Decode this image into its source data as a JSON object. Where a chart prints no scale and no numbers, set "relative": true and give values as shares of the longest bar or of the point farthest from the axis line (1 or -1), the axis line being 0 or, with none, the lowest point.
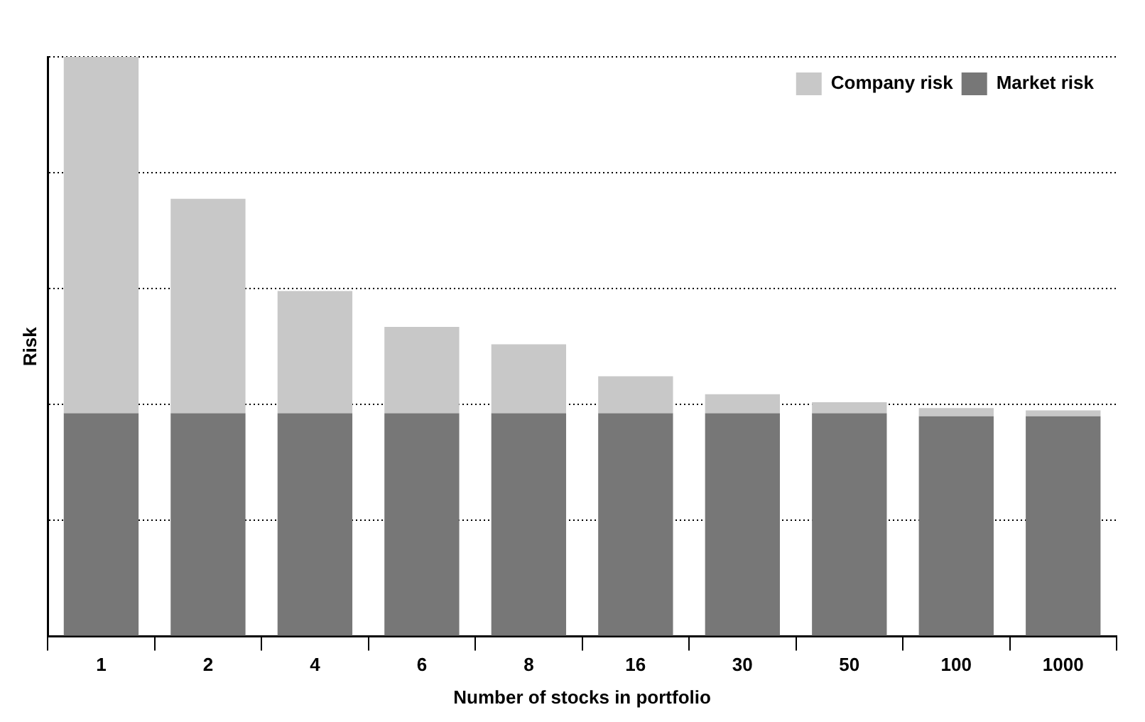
{
  "chart_data": {
    "type": "bar",
    "stacked": true,
    "relative": true,
    "xlabel": "Number of stocks in portfolio",
    "ylabel": "Risk",
    "categories": [
      "1",
      "2",
      "4",
      "6",
      "8",
      "16",
      "30",
      "50",
      "100",
      "1000"
    ],
    "series": [
      {
        "name": "Market risk",
        "color": "#777777",
        "values": [
          0.385,
          0.385,
          0.385,
          0.385,
          0.385,
          0.385,
          0.385,
          0.385,
          0.38,
          0.38
        ]
      },
      {
        "name": "Company risk",
        "color": "#c8c8c8",
        "values": [
          0.615,
          0.37,
          0.211,
          0.149,
          0.119,
          0.064,
          0.033,
          0.019,
          0.014,
          0.01
        ]
      }
    ],
    "grid": "y",
    "legend": "top right"
  }
}
